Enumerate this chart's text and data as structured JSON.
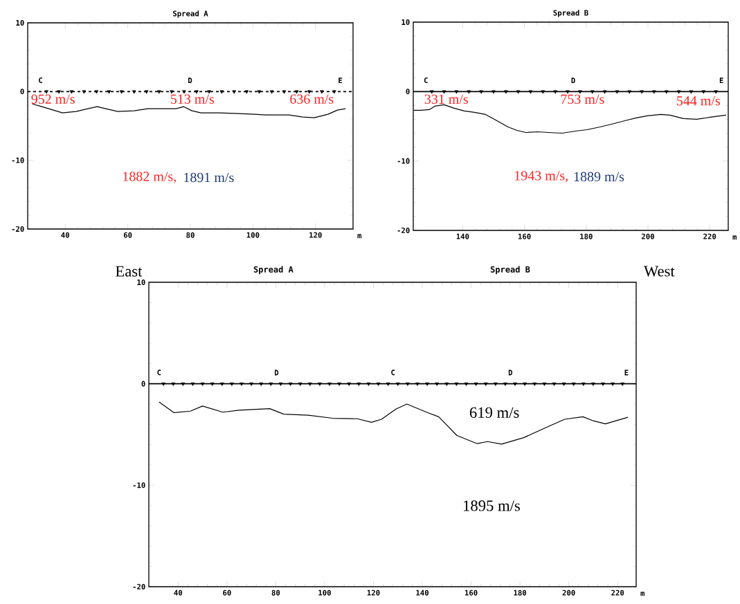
{
  "chart_data": [
    {
      "type": "line",
      "title": "Spread A",
      "xlabel": "m",
      "xlim": [
        28,
        132
      ],
      "ylim": [
        -20,
        10
      ],
      "xticks": [
        40,
        60,
        80,
        100,
        120
      ],
      "yticks": [
        10,
        0,
        -10,
        -20
      ],
      "grid": false,
      "ref_lines": [
        {
          "axis": "y",
          "value": 0,
          "color": "#000000",
          "line_style": "dashed"
        }
      ],
      "series": [
        {
          "color": "#000000",
          "line_style": "solid",
          "marker": "none",
          "x": [
            29.5,
            32.5,
            36.2,
            39.1,
            43.5,
            47.2,
            50.2,
            53.9,
            56.8,
            62,
            66.4,
            70.9,
            75.3,
            77.9,
            80.5,
            83.4,
            89.3,
            95.2,
            100.4,
            104.1,
            111.5,
            115.9,
            119.6,
            124,
            127,
            129.6
          ],
          "values": [
            -1.8,
            -2.2,
            -2.7,
            -3.1,
            -2.9,
            -2.5,
            -2.2,
            -2.6,
            -2.9,
            -2.8,
            -2.5,
            -2.5,
            -2.5,
            -2.2,
            -2.8,
            -3.1,
            -3.1,
            -3.2,
            -3.3,
            -3.4,
            -3.4,
            -3.7,
            -3.8,
            -3.3,
            -2.7,
            -2.5
          ]
        },
        {
          "type": "scatter",
          "color": "#000000",
          "marker": "triangle",
          "x": [
            34,
            38,
            42,
            46,
            50,
            54,
            58,
            62,
            66,
            70,
            74,
            78,
            82,
            86,
            90,
            94,
            98,
            102,
            106,
            110,
            114,
            118,
            122,
            126
          ],
          "values": [
            0,
            0,
            0,
            0,
            0,
            0,
            0,
            0,
            0,
            0,
            0,
            0,
            0,
            0,
            0,
            0,
            0,
            0,
            0,
            0,
            0,
            0,
            0,
            0
          ]
        }
      ],
      "annotations": [
        {
          "text": "C",
          "x": 32.1,
          "y": 0
        },
        {
          "text": "D",
          "x": 79.9,
          "y": 0
        },
        {
          "text": "E",
          "x": 127.9,
          "y": 0
        },
        "952 m/s",
        "513 m/s",
        "636 m/s",
        "1882 m/s,",
        "1891 m/s"
      ]
    },
    {
      "type": "line",
      "title": "Spread B",
      "xlabel": "m",
      "xlim": [
        124,
        226
      ],
      "ylim": [
        -20,
        10
      ],
      "xticks": [
        140,
        160,
        180,
        200,
        220
      ],
      "yticks": [
        10,
        0,
        -10,
        -20
      ],
      "grid": false,
      "ref_lines": [
        {
          "axis": "y",
          "value": 0,
          "color": "#000000",
          "line_style": "solid"
        }
      ],
      "series": [
        {
          "color": "#000000",
          "line_style": "solid",
          "marker": "none",
          "x": [
            124.2,
            126.7,
            129.2,
            131,
            134,
            137.2,
            140.5,
            143.8,
            147.4,
            150.7,
            154.7,
            157.6,
            160.5,
            164.2,
            167.8,
            172.2,
            176.5,
            180.2,
            184.5,
            188.2,
            192.5,
            196.2,
            199.8,
            204.2,
            207.1,
            211.5,
            215.8,
            220.2,
            225.3
          ],
          "values": [
            -2.7,
            -2.7,
            -2.6,
            -2.1,
            -1.9,
            -2.4,
            -2.8,
            -3.0,
            -3.3,
            -4.1,
            -5.1,
            -5.6,
            -5.9,
            -5.8,
            -5.9,
            -6.0,
            -5.7,
            -5.5,
            -5.1,
            -4.7,
            -4.2,
            -3.8,
            -3.5,
            -3.3,
            -3.4,
            -3.9,
            -4.0,
            -3.7,
            -3.4
          ]
        },
        {
          "type": "scatter",
          "color": "#000000",
          "marker": "triangle",
          "x": [
            130,
            134,
            138,
            142,
            146,
            150,
            154,
            158,
            162,
            166,
            170,
            174,
            178,
            182,
            186,
            190,
            194,
            198,
            202,
            206,
            210,
            214,
            218,
            222
          ],
          "values": [
            0,
            0,
            0,
            0,
            0,
            0,
            0,
            0,
            0,
            0,
            0,
            0,
            0,
            0,
            0,
            0,
            0,
            0,
            0,
            0,
            0,
            0,
            0,
            0
          ]
        }
      ],
      "annotations": [
        {
          "text": "C",
          "x": 128.1,
          "y": 0
        },
        {
          "text": "D",
          "x": 175.8,
          "y": 0
        },
        {
          "text": "E",
          "x": 223.8,
          "y": 0
        },
        "331 m/s",
        "753 m/s",
        "544 m/s",
        "1943 m/s,",
        "1889 m/s"
      ]
    },
    {
      "type": "line",
      "xlabel": "m",
      "xlim": [
        28,
        227.6
      ],
      "ylim": [
        -20,
        10
      ],
      "xticks": [
        40,
        60,
        80,
        100,
        120,
        140,
        160,
        180,
        200,
        220
      ],
      "yticks": [
        10,
        0,
        -10,
        -20
      ],
      "grid": false,
      "ref_lines": [
        {
          "axis": "y",
          "value": 0,
          "color": "#000000",
          "line_style": "solid"
        }
      ],
      "series": [
        {
          "color": "#000000",
          "line_style": "solid",
          "marker": "none",
          "x": [
            32.2,
            38.3,
            45,
            50,
            58.3,
            65,
            77.5,
            83.3,
            93.3,
            103.3,
            113.3,
            119.2,
            123.3,
            129.2,
            133.7,
            141.7,
            146.7,
            154.2,
            162.5,
            166.7,
            172.5,
            181.7,
            190.8,
            198.3,
            205.8,
            210,
            215,
            224.2
          ],
          "values": [
            -1.8,
            -2.85,
            -2.7,
            -2.2,
            -2.8,
            -2.6,
            -2.45,
            -3.0,
            -3.1,
            -3.4,
            -3.45,
            -3.8,
            -3.5,
            -2.5,
            -2.0,
            -2.8,
            -3.25,
            -5.1,
            -5.9,
            -5.7,
            -5.95,
            -5.3,
            -4.3,
            -3.5,
            -3.25,
            -3.65,
            -3.95,
            -3.3
          ]
        },
        {
          "type": "scatter",
          "color": "#000000",
          "marker": "triangle",
          "x": [
            34,
            38,
            42,
            46,
            50,
            54,
            58,
            62,
            66,
            70,
            74,
            78,
            82,
            86,
            90,
            94,
            98,
            102,
            106,
            110,
            114,
            118,
            122,
            126,
            130,
            134,
            138,
            142,
            146,
            150,
            154,
            158,
            162,
            166,
            170,
            174,
            178,
            182,
            186,
            190,
            194,
            198,
            202,
            206,
            210,
            214,
            218,
            222
          ],
          "values": [
            0,
            0,
            0,
            0,
            0,
            0,
            0,
            0,
            0,
            0,
            0,
            0,
            0,
            0,
            0,
            0,
            0,
            0,
            0,
            0,
            0,
            0,
            0,
            0,
            0,
            0,
            0,
            0,
            0,
            0,
            0,
            0,
            0,
            0,
            0,
            0,
            0,
            0,
            0,
            0,
            0,
            0,
            0,
            0,
            0,
            0,
            0,
            0
          ]
        }
      ],
      "annotations": [
        "East",
        "West",
        "Spread A",
        "Spread B",
        {
          "text": "C",
          "x": 32.2,
          "y": 0
        },
        {
          "text": "D",
          "x": 80.3,
          "y": 0
        },
        {
          "text": "C",
          "x": 128,
          "y": 0
        },
        {
          "text": "D",
          "x": 176.1,
          "y": 0
        },
        {
          "text": "E",
          "x": 223.6,
          "y": 0
        },
        "619 m/s",
        "1895 m/s"
      ]
    }
  ]
}
